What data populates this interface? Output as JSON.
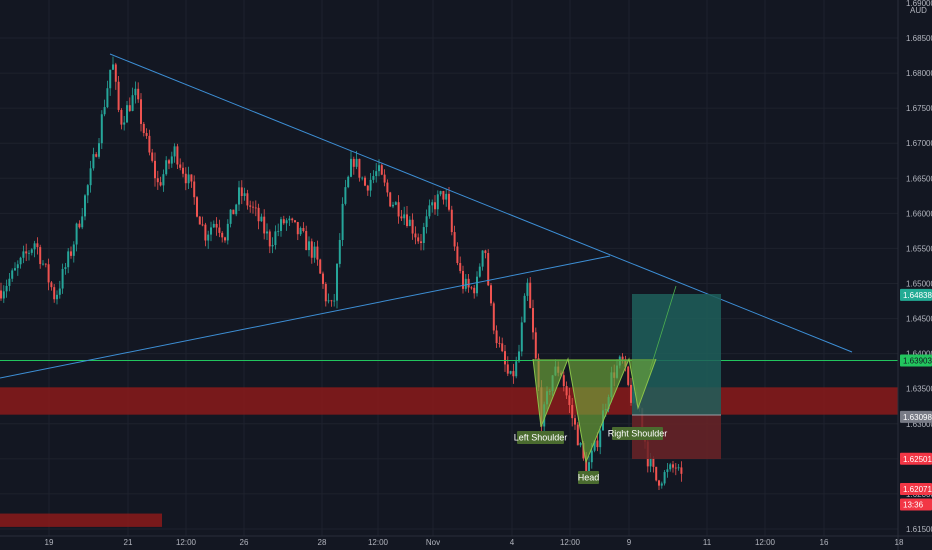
{
  "chart_data": {
    "type": "candlestick",
    "currency": "AUD",
    "y_axis": {
      "ticks": [
        1.615,
        1.62,
        1.625,
        1.63,
        1.635,
        1.64,
        1.645,
        1.65,
        1.655,
        1.66,
        1.665,
        1.67,
        1.675,
        1.68,
        1.685
      ],
      "labels": [
        "1.61500",
        "1.62000",
        "1.62500",
        "1.63000",
        "1.63500",
        "1.64000",
        "1.64500",
        "1.65000",
        "1.65500",
        "1.66000",
        "1.66500",
        "1.67000",
        "1.67500",
        "1.68000",
        "1.68500"
      ],
      "top_partial_label": "1.69000",
      "range": [
        1.6135,
        1.6915
      ]
    },
    "x_axis": {
      "labels": [
        "19",
        "21",
        "12:00",
        "26",
        "28",
        "12:00",
        "Nov",
        "4",
        "12:00",
        "9",
        "11",
        "12:00",
        "16",
        "18"
      ]
    },
    "price_tags": [
      {
        "label": "1.64838",
        "value": 1.64838,
        "color": "#22ab94",
        "text_color": "#ffffff"
      },
      {
        "label": "1.63903",
        "value": 1.63903,
        "color": "#22c55e",
        "text_color": "#131722"
      },
      {
        "label": "1.63098",
        "value": 1.63098,
        "color": "#787b86",
        "text_color": "#ffffff"
      },
      {
        "label": "1.62501",
        "value": 1.62501,
        "color": "#f23645",
        "text_color": "#ffffff"
      },
      {
        "label": "1.62071",
        "value": 1.62071,
        "color": "#f23645",
        "text_color": "#ffffff"
      },
      {
        "label": "13:36",
        "value": 1.6185,
        "color": "#f23645",
        "text_color": "#ffffff"
      }
    ],
    "horizontal_line": {
      "value": 1.63903,
      "color": "#22c55e"
    },
    "zones": [
      {
        "kind": "resistance",
        "y1": 1.6352,
        "y2": 1.6313,
        "color": "#8b1a1a"
      },
      {
        "kind": "bottom",
        "y1": 1.6172,
        "y2": 1.6153,
        "color": "#8b1a1a"
      }
    ],
    "annotations": [
      {
        "text": "Left Shoulder",
        "value": 1.62946,
        "color": "#4a6b2f"
      },
      {
        "text": "Head",
        "value": 1.6223,
        "color": "#4a6b2f"
      },
      {
        "text": "Right Shoulder",
        "value": 1.62994,
        "color": "#4a6b2f"
      }
    ],
    "colors": {
      "up": "#26a69a",
      "down": "#ef5350",
      "trendline": "#3d8fd6",
      "profit": "#1f5f5a",
      "loss": "#6b2327",
      "grid": "#1e222d",
      "background": "#131722",
      "pattern": "#6fa83a"
    }
  }
}
